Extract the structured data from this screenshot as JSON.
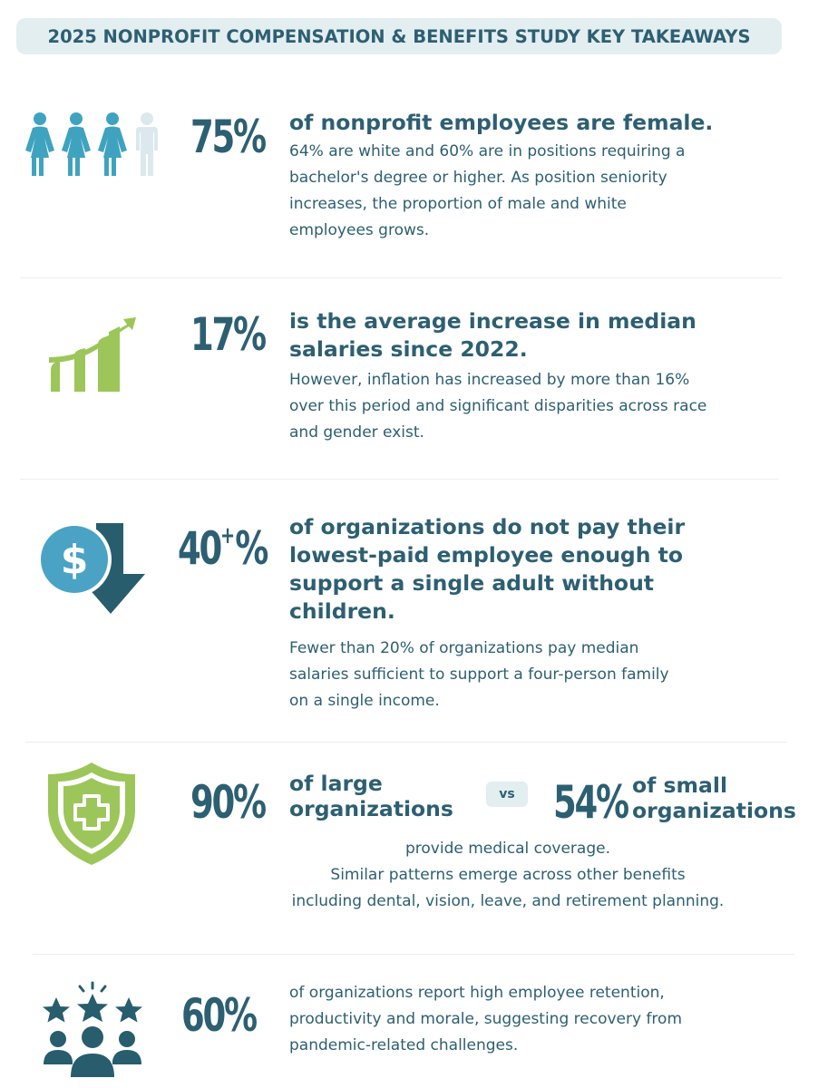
{
  "header": {
    "title": "2025 NONPROFIT COMPENSATION & BENEFITS STUDY KEY TAKEAWAYS"
  },
  "colors": {
    "primary": "#2d5f72",
    "teal": "#3fa3c0",
    "green": "#9cc65a",
    "light_bg": "#e3eef1"
  },
  "sections": [
    {
      "icon": "people-female-icon",
      "stat": "75%",
      "headline": "of nonprofit employees are female.",
      "body_lines": [
        "64% are white and 60% are in positions requiring a",
        "bachelor's degree or higher. As position seniority",
        "increases, the proportion of male and white",
        "employees grows."
      ]
    },
    {
      "icon": "growth-chart-icon",
      "stat": "17%",
      "headline_lines": [
        "is the average increase in median",
        "salaries since 2022."
      ],
      "body_lines": [
        "However, inflation has increased by more than 16%",
        "over this period and significant disparities across race",
        "and gender exist."
      ]
    },
    {
      "icon": "dollar-down-icon",
      "stat_main": "40",
      "stat_sup": "+",
      "stat_suffix": "%",
      "headline_lines": [
        "of organizations do not pay their",
        "lowest-paid employee enough to",
        "support a single adult without",
        "children."
      ],
      "body_lines": [
        "Fewer than 20% of organizations pay median",
        "salaries sufficient to support a four-person family",
        "on a single income."
      ]
    },
    {
      "icon": "shield-medical-icon",
      "stat": "90%",
      "headline_lines": [
        "of large",
        "organizations"
      ],
      "vs_label": "vs",
      "stat_2": "54%",
      "headline_2_lines": [
        "of small",
        "organizations"
      ],
      "body_lines": [
        "provide medical coverage.",
        "Similar patterns emerge across other benefits",
        "including dental, vision, leave, and retirement planning."
      ]
    },
    {
      "icon": "team-stars-icon",
      "stat": "60%",
      "body_lines": [
        "of organizations report high employee retention,",
        "productivity and morale, suggesting recovery from",
        "pandemic-related challenges."
      ]
    }
  ]
}
